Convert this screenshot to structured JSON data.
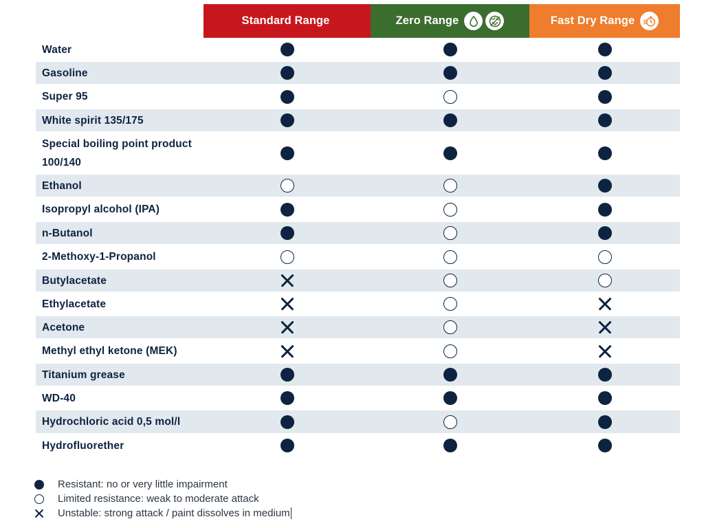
{
  "columns": [
    {
      "key": "standard",
      "label": "Standard Range",
      "color": "#c8161d",
      "icons": []
    },
    {
      "key": "zero",
      "label": "Zero Range",
      "color": "#3a6d2e",
      "icons": [
        "droplet-icon",
        "globe-icon"
      ]
    },
    {
      "key": "fast",
      "label": "Fast Dry Range",
      "color": "#ef7d2d",
      "icons": [
        "stopwatch-icon"
      ]
    }
  ],
  "rows": [
    {
      "name": "Water",
      "marks": [
        "resistant",
        "resistant",
        "resistant"
      ]
    },
    {
      "name": "Gasoline",
      "marks": [
        "resistant",
        "resistant",
        "resistant"
      ]
    },
    {
      "name": "Super 95",
      "marks": [
        "resistant",
        "limited",
        "resistant"
      ]
    },
    {
      "name": "White spirit 135/175",
      "marks": [
        "resistant",
        "resistant",
        "resistant"
      ]
    },
    {
      "name": "Special boiling point product 100/140",
      "marks": [
        "resistant",
        "resistant",
        "resistant"
      ]
    },
    {
      "name": "Ethanol",
      "marks": [
        "limited",
        "limited",
        "resistant"
      ]
    },
    {
      "name": "Isopropyl alcohol (IPA)",
      "marks": [
        "resistant",
        "limited",
        "resistant"
      ]
    },
    {
      "name": "n-Butanol",
      "marks": [
        "resistant",
        "limited",
        "resistant"
      ]
    },
    {
      "name": "2-Methoxy-1-Propanol",
      "marks": [
        "limited",
        "limited",
        "limited"
      ]
    },
    {
      "name": "Butylacetate",
      "marks": [
        "unstable",
        "limited",
        "limited"
      ]
    },
    {
      "name": "Ethylacetate",
      "marks": [
        "unstable",
        "limited",
        "unstable"
      ]
    },
    {
      "name": "Acetone",
      "marks": [
        "unstable",
        "limited",
        "unstable"
      ]
    },
    {
      "name": "Methyl ethyl ketone (MEK)",
      "marks": [
        "unstable",
        "limited",
        "unstable"
      ]
    },
    {
      "name": "Titanium grease",
      "marks": [
        "resistant",
        "resistant",
        "resistant"
      ]
    },
    {
      "name": "WD-40",
      "marks": [
        "resistant",
        "resistant",
        "resistant"
      ]
    },
    {
      "name": "Hydrochloric acid 0,5 mol/l",
      "marks": [
        "resistant",
        "limited",
        "resistant"
      ]
    },
    {
      "name": "Hydrofluorether",
      "marks": [
        "resistant",
        "resistant",
        "resistant"
      ]
    }
  ],
  "legend": [
    {
      "symbol": "resistant",
      "text": "Resistant: no or very little impairment"
    },
    {
      "symbol": "limited",
      "text": "Limited resistance: weak to moderate attack"
    },
    {
      "symbol": "unstable",
      "text": "Unstable: strong attack / paint dissolves in medium"
    }
  ],
  "colors": {
    "mark": "#0d2340",
    "row_shade": "#e1e8ee"
  }
}
